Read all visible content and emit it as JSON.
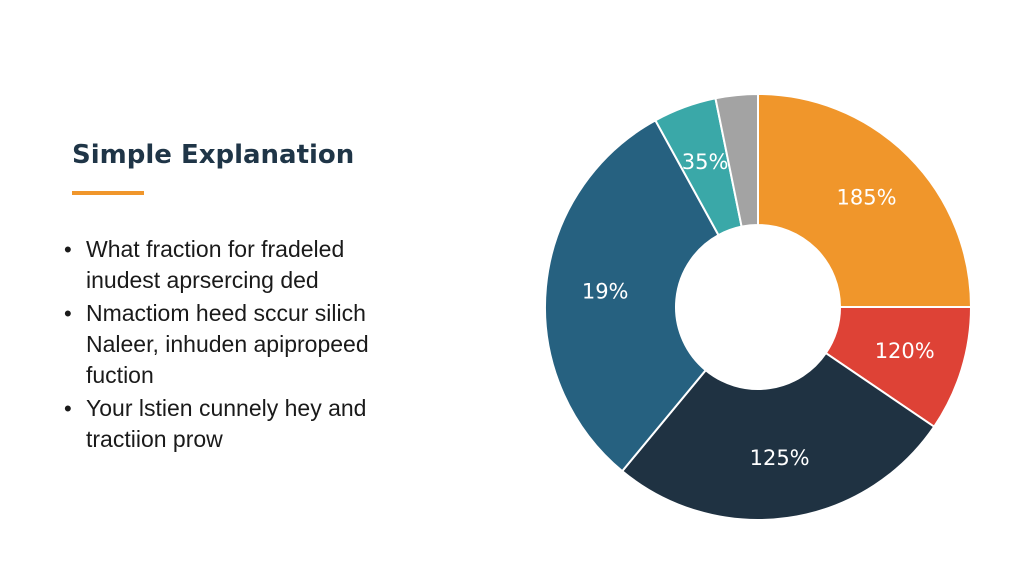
{
  "explanation": {
    "title": "Simple Explanation",
    "bullets": [
      {
        "lines": [
          "What fraction for fradeled",
          "inudest aprsercing ded"
        ]
      },
      {
        "lines": [
          "Nmactiom heed sccur silich",
          "Naleer, inhuden apipropeed",
          "fuction"
        ]
      },
      {
        "lines": [
          "Your lstien cunnely hey and",
          "tractiion prow"
        ]
      }
    ],
    "accent_color": "#f0962b"
  },
  "chart_data": {
    "type": "pie",
    "donut": true,
    "title": "",
    "slices": [
      {
        "label": "185%",
        "value": 25,
        "color": "#f0962b"
      },
      {
        "label": "120%",
        "value": 9.5,
        "color": "#de4236"
      },
      {
        "label": "125%",
        "value": 26.5,
        "color": "#1f3242"
      },
      {
        "label": "19%",
        "value": 31,
        "color": "#266180"
      },
      {
        "label": "35%",
        "value": 4.8,
        "color": "#3aa8a8"
      },
      {
        "label": "",
        "value": 3.2,
        "color": "#a3a3a3"
      }
    ]
  }
}
